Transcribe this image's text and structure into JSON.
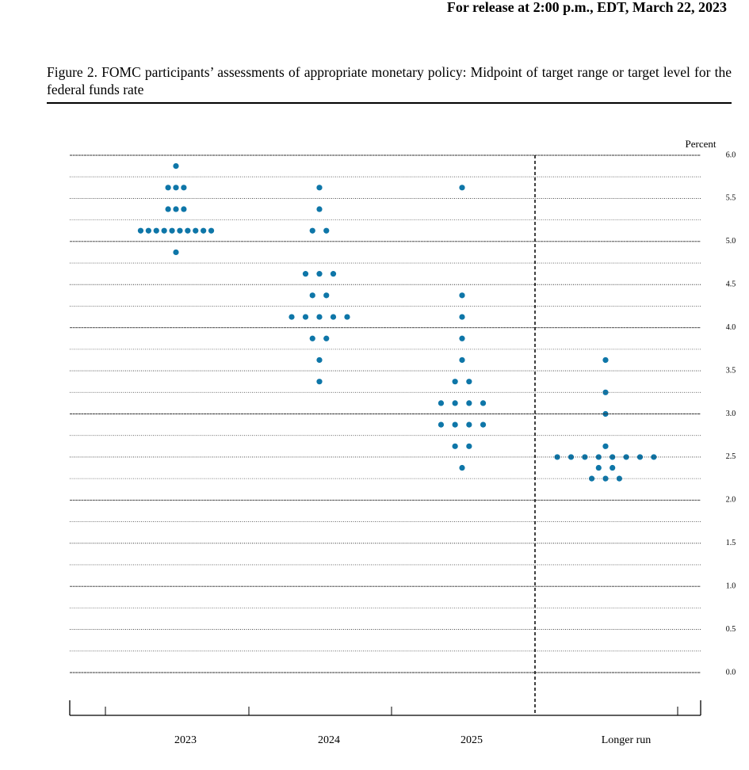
{
  "header": "For release at 2:00 p.m., EDT, March 22, 2023",
  "chart_data": {
    "type": "dot",
    "title": "Figure 2.  FOMC participants’ assessments of appropriate monetary policy:  Midpoint of target range or target level for the federal funds rate",
    "y_label": "Percent",
    "categories": [
      "2023",
      "2024",
      "2025",
      "Longer run"
    ],
    "color": "#0e76a8",
    "values": [
      [
        5.875,
        5.625,
        5.625,
        5.625,
        5.375,
        5.375,
        5.375,
        5.125,
        5.125,
        5.125,
        5.125,
        5.125,
        5.125,
        5.125,
        5.125,
        5.125,
        5.125,
        4.875
      ],
      [
        5.625,
        5.375,
        5.125,
        5.125,
        4.625,
        4.625,
        4.625,
        4.375,
        4.375,
        4.125,
        4.125,
        4.125,
        4.125,
        4.125,
        3.875,
        3.875,
        3.625,
        3.375
      ],
      [
        5.625,
        4.375,
        4.125,
        3.875,
        3.625,
        3.375,
        3.375,
        3.125,
        3.125,
        3.125,
        3.125,
        2.875,
        2.875,
        2.875,
        2.875,
        2.625,
        2.625,
        2.375
      ],
      [
        3.625,
        3.25,
        3.0,
        2.625,
        2.5,
        2.5,
        2.5,
        2.5,
        2.5,
        2.5,
        2.5,
        2.5,
        2.375,
        2.375,
        2.25,
        2.25,
        2.25
      ]
    ],
    "ylim": [
      0,
      6
    ],
    "yticks": [
      {
        "value": 0,
        "label": "0.0"
      },
      0.5,
      {
        "value": 1,
        "label": "1.0"
      },
      1.5,
      {
        "value": 2,
        "label": "2.0"
      },
      2.5,
      {
        "value": 3,
        "label": "3.0"
      },
      3.5,
      {
        "value": 4,
        "label": "4.0"
      },
      4.5,
      {
        "value": 5,
        "label": "5.0"
      },
      5.5,
      {
        "value": 6,
        "label": "6.0"
      }
    ],
    "yminor": [
      0.25,
      0.75,
      1.25,
      1.75,
      2.25,
      2.75,
      3.25,
      3.75,
      4.25,
      4.75,
      5.25,
      5.75
    ],
    "grid": true
  }
}
